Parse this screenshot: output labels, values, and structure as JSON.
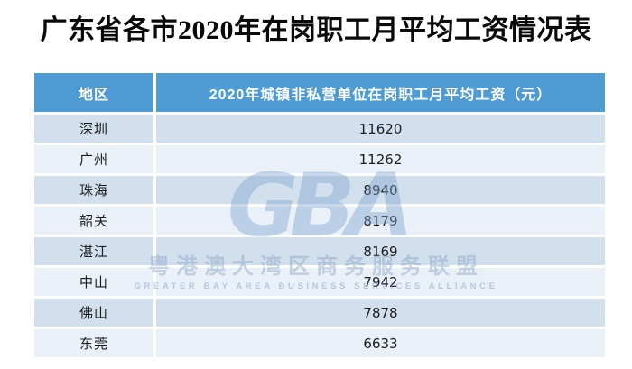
{
  "page": {
    "title": "广东省各市2020年在岗职工月平均工资情况表"
  },
  "table": {
    "columns": [
      {
        "label": "地区"
      },
      {
        "label": "2020年城镇非私营单位在岗职工月平均工资（元）"
      }
    ],
    "rows": [
      {
        "city": "深圳",
        "salary": "11620"
      },
      {
        "city": "广州",
        "salary": "11262"
      },
      {
        "city": "珠海",
        "salary": "8940"
      },
      {
        "city": "韶关",
        "salary": "8179"
      },
      {
        "city": "湛江",
        "salary": "8169"
      },
      {
        "city": "中山",
        "salary": "7942"
      },
      {
        "city": "佛山",
        "salary": "7878"
      },
      {
        "city": "东莞",
        "salary": "6633"
      }
    ]
  },
  "watermark": {
    "logo_text": "GBA",
    "line_cn": "粤港澳大湾区商务服务联盟",
    "line_en": "GREATER BAY AREA BUSINESS SERVICES ALLIANCE"
  },
  "colors": {
    "header_bg": "#4f9bd3",
    "row_odd_bg": "#d2e0ee",
    "row_even_bg": "#e9f0f8",
    "title_text": "#0a0a0a",
    "watermark_blue": "#7da3cd"
  },
  "chart_data": {
    "type": "table",
    "title": "广东省各市2020年在岗职工月平均工资情况表",
    "columns": [
      "地区",
      "2020年城镇非私营单位在岗职工月平均工资（元）"
    ],
    "categories": [
      "深圳",
      "广州",
      "珠海",
      "韶关",
      "湛江",
      "中山",
      "佛山",
      "东莞"
    ],
    "values": [
      11620,
      11262,
      8940,
      8179,
      8169,
      7942,
      7878,
      6633
    ],
    "unit": "元/月"
  }
}
